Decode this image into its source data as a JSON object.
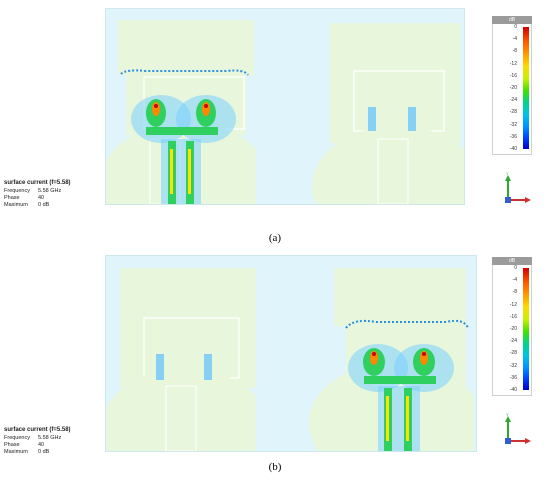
{
  "panels": [
    {
      "caption": "(a)",
      "info": {
        "title": "surface current (f=5.58)",
        "rows": [
          {
            "label": "Frequency",
            "value": "5.58 GHz"
          },
          {
            "label": "Phase",
            "value": "40"
          },
          {
            "label": "Maximum",
            "value": "0 dB"
          }
        ]
      },
      "active_element": "left"
    },
    {
      "caption": "(b)",
      "info": {
        "title": "surface current (f=5.58)",
        "rows": [
          {
            "label": "Frequency",
            "value": "5.58 GHz"
          },
          {
            "label": "Phase",
            "value": "40"
          },
          {
            "label": "Maximum",
            "value": "0 dB"
          }
        ]
      },
      "active_element": "right"
    }
  ],
  "legend": {
    "unit": "dB",
    "ticks": [
      "0",
      "-4",
      "-8",
      "-12",
      "-16",
      "-20",
      "-24",
      "-28",
      "-32",
      "-36",
      "-40"
    ],
    "colors": {
      "max": "#d10000",
      "mid": "#46e000",
      "min": "#0000c8"
    }
  },
  "axes": {
    "y": "Y",
    "z": "Z",
    "x": "X"
  },
  "colors": {
    "background": "#dff4fb",
    "patch": "#e8f7dc",
    "line": "#ffffff"
  }
}
